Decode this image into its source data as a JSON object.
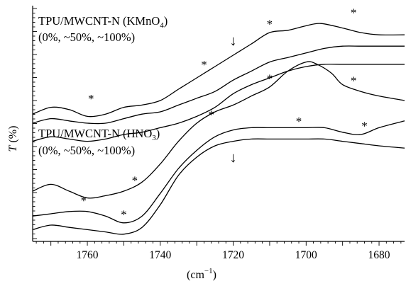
{
  "chart_data": {
    "type": "line",
    "ylabel_var": "T",
    "ylabel_unit": "(%)",
    "xlabel": "(cm",
    "xlabel_sup": "−1",
    "xlabel_close": ")",
    "xlim": [
      1775,
      1673
    ],
    "x_ticks": [
      1760,
      1740,
      1720,
      1700,
      1680
    ],
    "x_tick_labels": [
      "1760",
      "1740",
      "1720",
      "1700",
      "1680"
    ],
    "y_axis_values_shown": false,
    "grid": false,
    "annotations": [
      {
        "id": "kmno4",
        "prefix": "TPU/MWCNT-N (KMnO",
        "sub": "4",
        "suffix": ")",
        "line2": "(0%, ~50%, ~100%)"
      },
      {
        "id": "hno3",
        "prefix": "TPU/MWCNT-N (HNO",
        "sub": "3",
        "suffix": ")",
        "line2": "(0%, ~50%, ~100%)"
      }
    ],
    "arrow_glyph": "↓",
    "arrows": [
      {
        "group": "kmno4",
        "x": 1720
      },
      {
        "group": "hno3",
        "x": 1720
      }
    ],
    "peak_marker": "*",
    "series": [
      {
        "group": "kmno4",
        "points": [
          [
            1775,
            54
          ],
          [
            1770,
            57
          ],
          [
            1765,
            56
          ],
          [
            1760,
            53
          ],
          [
            1755,
            54
          ],
          [
            1750,
            57
          ],
          [
            1745,
            58
          ],
          [
            1740,
            60
          ],
          [
            1735,
            65
          ],
          [
            1730,
            70
          ],
          [
            1725,
            75
          ],
          [
            1720,
            80
          ],
          [
            1715,
            85
          ],
          [
            1710,
            90
          ],
          [
            1705,
            91
          ],
          [
            1700,
            93
          ],
          [
            1696,
            94
          ],
          [
            1690,
            92
          ],
          [
            1685,
            90
          ],
          [
            1680,
            89
          ],
          [
            1673,
            89
          ]
        ]
      },
      {
        "group": "kmno4",
        "points": [
          [
            1775,
            50
          ],
          [
            1770,
            52
          ],
          [
            1765,
            51
          ],
          [
            1760,
            50
          ],
          [
            1755,
            50
          ],
          [
            1750,
            52
          ],
          [
            1745,
            54
          ],
          [
            1740,
            55
          ],
          [
            1735,
            58
          ],
          [
            1730,
            61
          ],
          [
            1725,
            64
          ],
          [
            1720,
            69
          ],
          [
            1715,
            73
          ],
          [
            1710,
            77
          ],
          [
            1705,
            79
          ],
          [
            1700,
            81
          ],
          [
            1695,
            83
          ],
          [
            1690,
            84
          ],
          [
            1685,
            84
          ],
          [
            1680,
            84
          ],
          [
            1673,
            84
          ]
        ]
      },
      {
        "group": "kmno4",
        "points": [
          [
            1775,
            42
          ],
          [
            1770,
            44
          ],
          [
            1765,
            43
          ],
          [
            1760,
            42
          ],
          [
            1755,
            43
          ],
          [
            1750,
            45
          ],
          [
            1745,
            46
          ],
          [
            1740,
            48
          ],
          [
            1735,
            50
          ],
          [
            1730,
            53
          ],
          [
            1725,
            57
          ],
          [
            1720,
            63
          ],
          [
            1715,
            67
          ],
          [
            1710,
            70
          ],
          [
            1705,
            73
          ],
          [
            1700,
            75
          ],
          [
            1695,
            76
          ],
          [
            1690,
            76
          ],
          [
            1685,
            76
          ],
          [
            1680,
            76
          ],
          [
            1673,
            76
          ]
        ]
      },
      {
        "group": "hno3",
        "points": [
          [
            1775,
            20
          ],
          [
            1770,
            23
          ],
          [
            1765,
            20
          ],
          [
            1760,
            17
          ],
          [
            1755,
            18
          ],
          [
            1750,
            20
          ],
          [
            1745,
            24
          ],
          [
            1740,
            32
          ],
          [
            1735,
            42
          ],
          [
            1730,
            50
          ],
          [
            1725,
            55
          ],
          [
            1720,
            58
          ],
          [
            1715,
            62
          ],
          [
            1710,
            66
          ],
          [
            1705,
            73
          ],
          [
            1700,
            77
          ],
          [
            1697,
            76
          ],
          [
            1693,
            72
          ],
          [
            1690,
            67
          ],
          [
            1685,
            64
          ],
          [
            1680,
            62
          ],
          [
            1673,
            60
          ]
        ]
      },
      {
        "group": "hno3",
        "points": [
          [
            1775,
            9
          ],
          [
            1770,
            10
          ],
          [
            1765,
            11
          ],
          [
            1760,
            11
          ],
          [
            1755,
            9
          ],
          [
            1750,
            6
          ],
          [
            1745,
            9
          ],
          [
            1740,
            19
          ],
          [
            1735,
            30
          ],
          [
            1730,
            38
          ],
          [
            1725,
            44
          ],
          [
            1720,
            47
          ],
          [
            1715,
            48
          ],
          [
            1710,
            48
          ],
          [
            1705,
            48
          ],
          [
            1700,
            48
          ],
          [
            1695,
            48
          ],
          [
            1690,
            46
          ],
          [
            1685,
            45
          ],
          [
            1680,
            48
          ],
          [
            1673,
            51
          ]
        ]
      },
      {
        "group": "hno3",
        "points": [
          [
            1775,
            3
          ],
          [
            1770,
            5
          ],
          [
            1765,
            4
          ],
          [
            1760,
            3
          ],
          [
            1755,
            2
          ],
          [
            1750,
            1
          ],
          [
            1745,
            4
          ],
          [
            1740,
            14
          ],
          [
            1735,
            27
          ],
          [
            1730,
            35
          ],
          [
            1725,
            40
          ],
          [
            1720,
            42
          ],
          [
            1715,
            43
          ],
          [
            1710,
            43
          ],
          [
            1705,
            43
          ],
          [
            1700,
            43
          ],
          [
            1695,
            43
          ],
          [
            1690,
            42
          ],
          [
            1685,
            41
          ],
          [
            1680,
            40
          ],
          [
            1673,
            39
          ]
        ]
      }
    ],
    "stars": [
      {
        "x": 1759,
        "y": 59
      },
      {
        "x": 1728,
        "y": 74
      },
      {
        "x": 1710,
        "y": 92
      },
      {
        "x": 1687,
        "y": 97
      },
      {
        "x": 1710,
        "y": 68
      },
      {
        "x": 1687,
        "y": 67
      },
      {
        "x": 1726,
        "y": 52
      },
      {
        "x": 1747,
        "y": 23
      },
      {
        "x": 1761,
        "y": 14
      },
      {
        "x": 1750,
        "y": 8
      },
      {
        "x": 1702,
        "y": 49
      },
      {
        "x": 1684,
        "y": 47
      }
    ]
  }
}
